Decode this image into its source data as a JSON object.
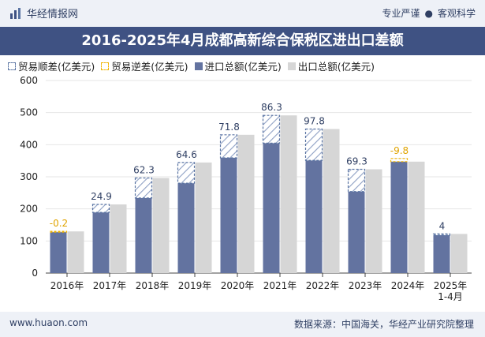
{
  "header": {
    "brand": "华经情报网",
    "tag1": "专业严谨",
    "tag_sep": "●",
    "tag2": "客观科学"
  },
  "footer": {
    "website": "www.huaon.com",
    "source": "数据来源：中国海关，华经产业研究院整理"
  },
  "colors": {
    "title_bg": "#3f5283",
    "import": "#6373a0",
    "export": "#d6d6d6",
    "surplus": "#5a74a3",
    "deficit": "#f0b400"
  },
  "chart_data": {
    "type": "bar",
    "title": "2016-2025年4月成都高新综合保税区进出口差额",
    "categories": [
      "2016年",
      "2017年",
      "2018年",
      "2019年",
      "2020年",
      "2021年",
      "2022年",
      "2023年",
      "2024年",
      "2025年\n1-4月"
    ],
    "ylim": [
      0,
      600
    ],
    "yticks": [
      0,
      100,
      200,
      300,
      400,
      500,
      600
    ],
    "legend_position": "top-left",
    "series": [
      {
        "name": "贸易顺差(亿美元)",
        "values": [
          null,
          24.9,
          62.3,
          64.6,
          71.8,
          86.3,
          97.8,
          69.3,
          null,
          4
        ]
      },
      {
        "name": "贸易逆差(亿美元)",
        "values": [
          -0.2,
          null,
          null,
          null,
          null,
          null,
          null,
          null,
          -9.8,
          null
        ]
      },
      {
        "name": "进口总额(亿美元)",
        "values": [
          130,
          189,
          234,
          280,
          359,
          405,
          351,
          254,
          357,
          118
        ]
      },
      {
        "name": "出口总额(亿美元)",
        "values": [
          129.8,
          213.9,
          296.3,
          344.6,
          430.8,
          491.3,
          448.8,
          323.3,
          347.2,
          122
        ]
      }
    ],
    "labels": [
      "-0.2",
      "24.9",
      "62.3",
      "64.6",
      "71.8",
      "86.3",
      "97.8",
      "69.3",
      "-9.8",
      "4"
    ]
  }
}
